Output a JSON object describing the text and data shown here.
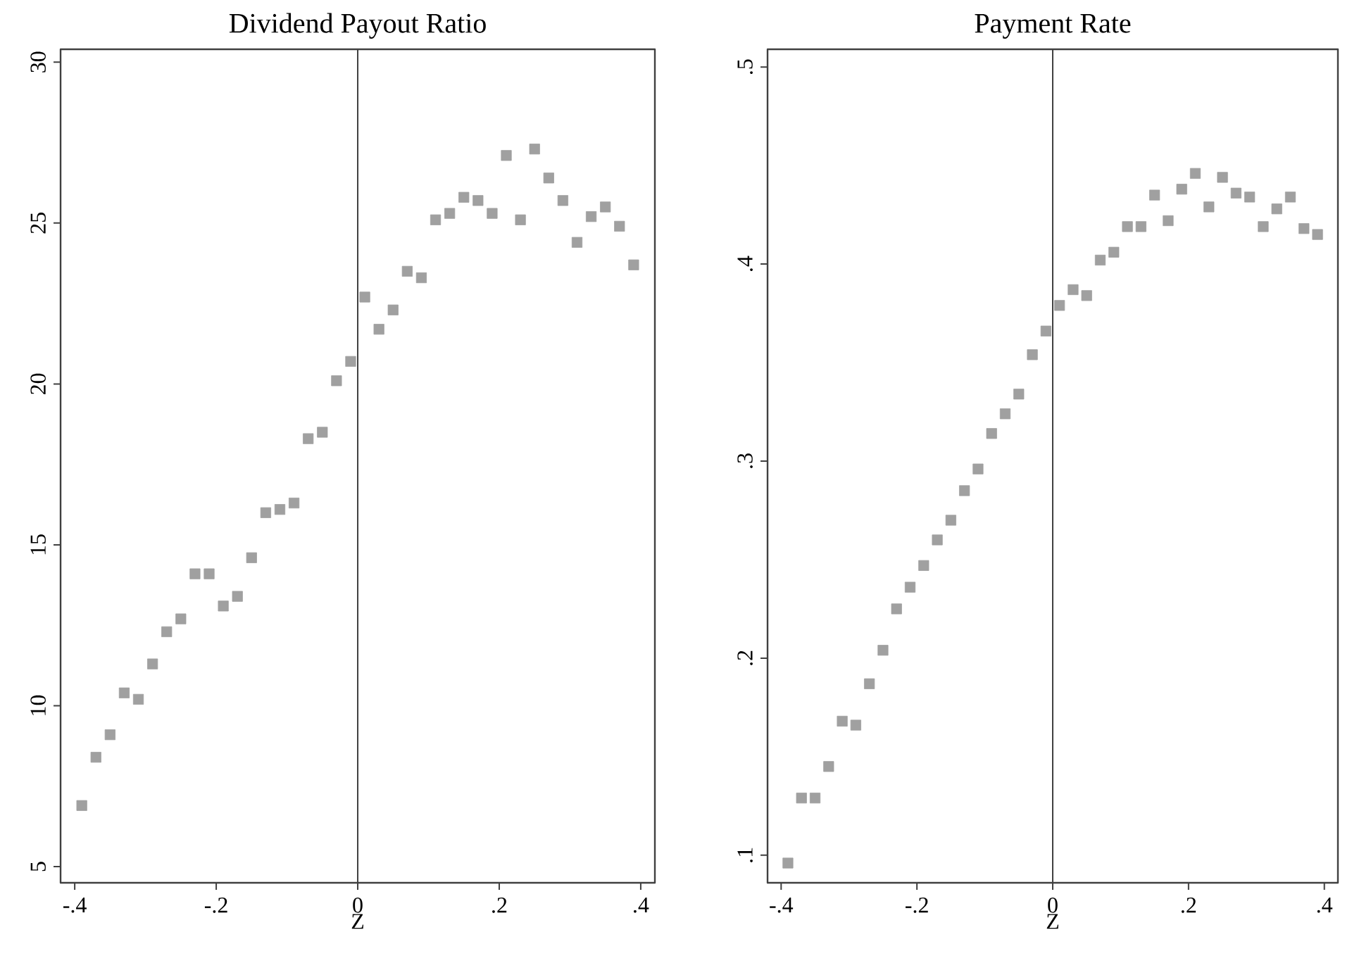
{
  "chart_data": [
    {
      "type": "scatter",
      "title": "Dividend Payout Ratio",
      "xlabel": "Z",
      "marker": "square",
      "x": [
        -0.39,
        -0.37,
        -0.35,
        -0.33,
        -0.31,
        -0.29,
        -0.27,
        -0.25,
        -0.23,
        -0.21,
        -0.19,
        -0.17,
        -0.15,
        -0.13,
        -0.11,
        -0.09,
        -0.07,
        -0.05,
        -0.03,
        -0.01,
        0.01,
        0.03,
        0.05,
        0.07,
        0.09,
        0.11,
        0.13,
        0.15,
        0.17,
        0.19,
        0.21,
        0.23,
        0.25,
        0.27,
        0.29,
        0.31,
        0.33,
        0.35,
        0.37,
        0.39
      ],
      "series": [
        {
          "color": "#a0a0a0",
          "values": [
            6.9,
            8.4,
            9.1,
            10.4,
            10.2,
            11.3,
            12.3,
            12.7,
            14.1,
            14.1,
            13.1,
            13.4,
            14.6,
            16.0,
            16.1,
            16.3,
            18.3,
            18.5,
            20.1,
            20.7,
            22.7,
            21.7,
            22.3,
            23.5,
            23.3,
            25.1,
            25.3,
            25.8,
            25.7,
            25.3,
            27.1,
            25.1,
            27.3,
            26.4,
            25.7,
            24.4,
            25.2,
            25.5,
            24.9,
            23.7
          ]
        }
      ],
      "xlim": [
        -0.42,
        0.42
      ],
      "ylim": [
        4.5,
        30.4
      ],
      "xticks": [
        {
          "value": -0.4,
          "label": "-.4"
        },
        {
          "value": -0.2,
          "label": "-.2"
        },
        0,
        {
          "value": 0.2,
          "label": ".2"
        },
        {
          "value": 0.4,
          "label": ".4"
        }
      ],
      "yticks": [
        5,
        10,
        15,
        20,
        25,
        30
      ],
      "ref_lines": [
        {
          "axis": "x",
          "value": 0,
          "color": "#404040"
        }
      ]
    },
    {
      "type": "scatter",
      "title": "Payment Rate",
      "xlabel": "Z",
      "marker": "square",
      "x": [
        -0.39,
        -0.37,
        -0.35,
        -0.33,
        -0.31,
        -0.29,
        -0.27,
        -0.25,
        -0.23,
        -0.21,
        -0.19,
        -0.17,
        -0.15,
        -0.13,
        -0.11,
        -0.09,
        -0.07,
        -0.05,
        -0.03,
        -0.01,
        0.01,
        0.03,
        0.05,
        0.07,
        0.09,
        0.11,
        0.13,
        0.15,
        0.17,
        0.19,
        0.21,
        0.23,
        0.25,
        0.27,
        0.29,
        0.31,
        0.33,
        0.35,
        0.37,
        0.39
      ],
      "series": [
        {
          "color": "#a0a0a0",
          "values": [
            0.096,
            0.129,
            0.129,
            0.145,
            0.168,
            0.166,
            0.187,
            0.204,
            0.225,
            0.236,
            0.247,
            0.26,
            0.27,
            0.285,
            0.296,
            0.314,
            0.324,
            0.334,
            0.354,
            0.366,
            0.379,
            0.387,
            0.384,
            0.402,
            0.406,
            0.419,
            0.419,
            0.435,
            0.422,
            0.438,
            0.446,
            0.429,
            0.444,
            0.436,
            0.434,
            0.419,
            0.428,
            0.434,
            0.418,
            0.415
          ]
        }
      ],
      "xlim": [
        -0.42,
        0.42
      ],
      "ylim": [
        0.086,
        0.509
      ],
      "xticks": [
        {
          "value": -0.4,
          "label": "-.4"
        },
        {
          "value": -0.2,
          "label": "-.2"
        },
        0,
        {
          "value": 0.2,
          "label": ".2"
        },
        {
          "value": 0.4,
          "label": ".4"
        }
      ],
      "yticks": [
        {
          "value": 0.1,
          "label": ".1"
        },
        {
          "value": 0.2,
          "label": ".2"
        },
        {
          "value": 0.3,
          "label": ".3"
        },
        {
          "value": 0.4,
          "label": ".4"
        },
        {
          "value": 0.5,
          "label": ".5"
        }
      ],
      "ref_lines": [
        {
          "axis": "x",
          "value": 0,
          "color": "#404040"
        }
      ]
    }
  ]
}
